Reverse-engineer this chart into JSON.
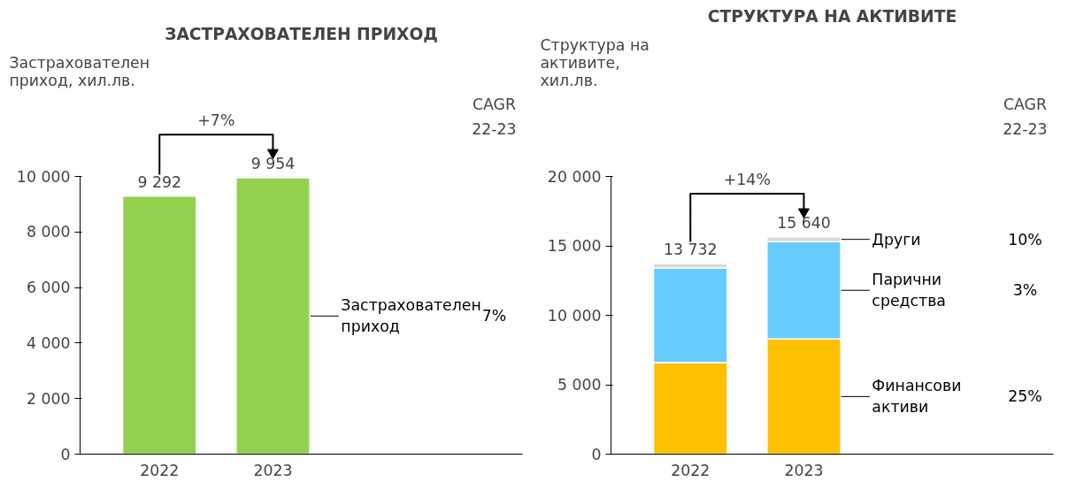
{
  "chart_data": [
    {
      "type": "bar",
      "title": "ЗАСТРАХОВАТЕЛЕН ПРИХОД",
      "ylabel": "Застрахователен приход, хил.лв.",
      "categories": [
        "2022",
        "2023"
      ],
      "series": [
        {
          "name": "Застрахователен приход",
          "color": "#92d050",
          "values": [
            9292,
            9954
          ],
          "value_labels": [
            "9 292",
            "9 954"
          ]
        }
      ],
      "ylim": [
        0,
        10000
      ],
      "yticks": [
        0,
        {
          "value": 2000,
          "label": "2 000"
        },
        {
          "value": 4000,
          "label": "4 000"
        },
        {
          "value": 6000,
          "label": "6 000"
        },
        {
          "value": 8000,
          "label": "8 000"
        },
        {
          "value": 10000,
          "label": "10 000"
        }
      ],
      "annotations": [
        "+7%",
        "CAGR",
        "22-23",
        "7%"
      ],
      "grid": false
    },
    {
      "type": "bar",
      "title": "СТРУКТУРА НА АКТИВИТЕ",
      "ylabel": "Структура на активите, хил.лв.",
      "categories": [
        "2022",
        "2023"
      ],
      "stacked": true,
      "series": [
        {
          "name": "Финансови активи",
          "color": "#ffc000",
          "values": [
            6600,
            8300
          ]
        },
        {
          "name": "Парични средства",
          "color": "#66ccff",
          "values": [
            6800,
            7010
          ]
        },
        {
          "name": "Други",
          "color": "#d9d9d9",
          "values": [
            330,
            330
          ]
        }
      ],
      "totals": [
        "13 732",
        "15 640"
      ],
      "ylim": [
        0,
        20000
      ],
      "yticks": [
        0,
        {
          "value": 5000,
          "label": "5 000"
        },
        {
          "value": 10000,
          "label": "10 000"
        },
        {
          "value": 15000,
          "label": "15 000"
        },
        {
          "value": 20000,
          "label": "20 000"
        }
      ],
      "annotations": [
        "+14%",
        "CAGR",
        "22-23",
        "25%",
        "3%",
        "10%"
      ],
      "grid": false
    }
  ]
}
